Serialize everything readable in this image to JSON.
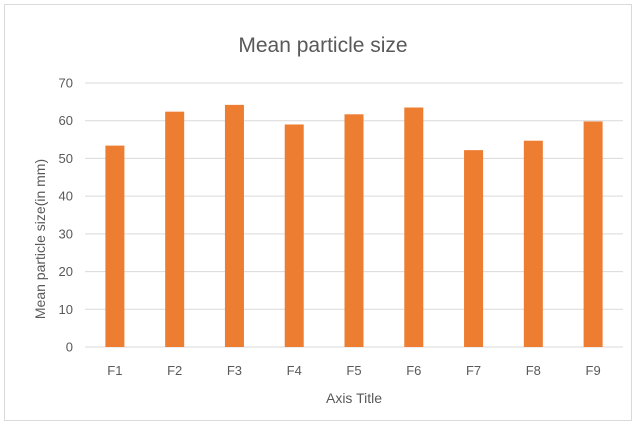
{
  "chart_data": {
    "type": "bar",
    "title": "Mean particle size",
    "xlabel": "Axis Title",
    "ylabel": "Mean particle size(in mm)",
    "categories": [
      "F1",
      "F2",
      "F3",
      "F4",
      "F5",
      "F6",
      "F7",
      "F8",
      "F9"
    ],
    "values": [
      53.4,
      62.4,
      64.2,
      59.0,
      61.7,
      63.5,
      52.2,
      54.7,
      59.8
    ],
    "ylim": [
      0,
      70
    ],
    "yticks": [
      "0",
      "10",
      "20",
      "30",
      "40",
      "50",
      "60",
      "70"
    ],
    "ytick_values": [
      0,
      10,
      20,
      30,
      40,
      50,
      60,
      70
    ],
    "grid": true,
    "legend": "none",
    "bar_color": "#ed7d31"
  }
}
